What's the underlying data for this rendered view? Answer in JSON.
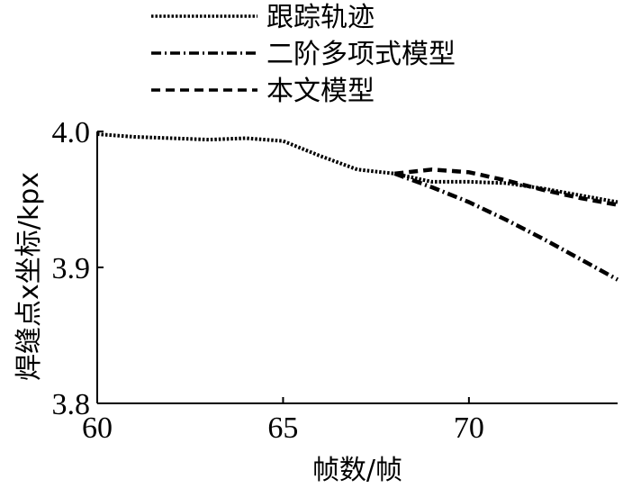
{
  "chart_data": {
    "type": "line",
    "xlabel": "帧数/帧",
    "ylabel": "焊缝点x坐标/kpx",
    "xlim": [
      60,
      74
    ],
    "ylim": [
      3.8,
      4.0
    ],
    "xticks": [
      "60",
      "65",
      "70"
    ],
    "yticks": [
      "3.8",
      "3.9",
      "4.0"
    ],
    "grid": false,
    "legend_position": "top",
    "series": [
      {
        "name": "跟踪轨迹",
        "style": "dotted",
        "x": [
          60,
          61,
          62,
          63,
          64,
          65,
          66,
          67,
          68,
          69,
          70,
          71,
          72,
          73,
          74
        ],
        "y": [
          3.998,
          3.996,
          3.995,
          3.994,
          3.995,
          3.993,
          3.982,
          3.972,
          3.969,
          3.963,
          3.963,
          3.962,
          3.958,
          3.953,
          3.948
        ]
      },
      {
        "name": "二阶多项式模型",
        "style": "dashdot",
        "x": [
          68,
          69,
          70,
          71,
          72,
          73,
          74
        ],
        "y": [
          3.969,
          3.959,
          3.948,
          3.935,
          3.921,
          3.906,
          3.891
        ]
      },
      {
        "name": "本文模型",
        "style": "dashed",
        "x": [
          68,
          69,
          70,
          71,
          72,
          73,
          74
        ],
        "y": [
          3.969,
          3.972,
          3.97,
          3.964,
          3.957,
          3.951,
          3.946
        ]
      }
    ]
  }
}
